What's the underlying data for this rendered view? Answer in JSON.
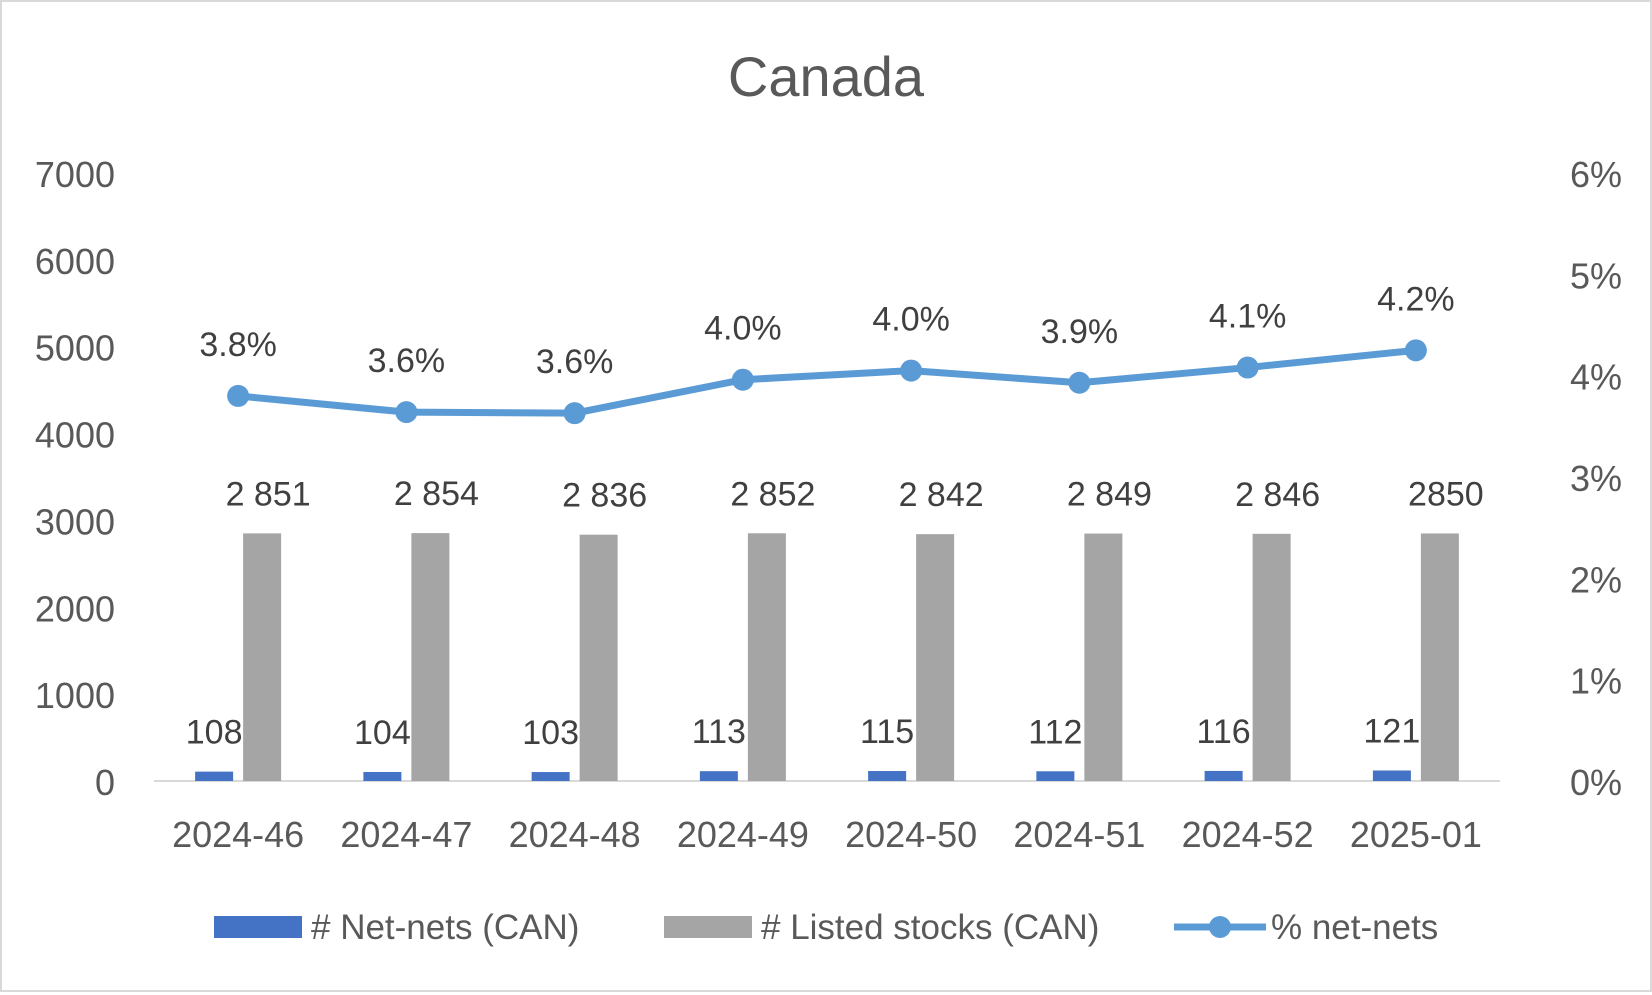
{
  "chart_data": {
    "type": "bar",
    "title": "Canada",
    "categories": [
      "2024-46",
      "2024-47",
      "2024-48",
      "2024-49",
      "2024-50",
      "2024-51",
      "2024-52",
      "2025-01"
    ],
    "ylim": [
      0,
      7000
    ],
    "yticks": [
      "0",
      "1000",
      "2000",
      "3000",
      "4000",
      "5000",
      "6000",
      "7000"
    ],
    "y2lim": [
      0,
      6
    ],
    "y2ticks": [
      "0%",
      "1%",
      "2%",
      "3%",
      "4%",
      "5%",
      "6%"
    ],
    "grid": false,
    "legend_position": "bottom",
    "series": [
      {
        "name": "# Net-nets (CAN)",
        "type": "bar",
        "axis": "left",
        "color": "#4472c4",
        "values": [
          108,
          104,
          103,
          113,
          115,
          112,
          116,
          121
        ],
        "labels": [
          "108",
          "104",
          "103",
          "113",
          "115",
          "112",
          "116",
          "121"
        ]
      },
      {
        "name": "# Listed stocks (CAN)",
        "type": "bar",
        "axis": "left",
        "color": "#a5a5a5",
        "values": [
          2851,
          2854,
          2836,
          2852,
          2842,
          2849,
          2846,
          2850
        ],
        "labels": [
          "2 851",
          "2 854",
          "2 836",
          "2 852",
          "2 842",
          "2 849",
          "2 846",
          "2850"
        ]
      },
      {
        "name": "% net-nets",
        "type": "line",
        "axis": "right",
        "color": "#5b9bd5",
        "values": [
          3.8,
          3.64,
          3.63,
          3.96,
          4.05,
          3.93,
          4.08,
          4.25
        ],
        "labels": [
          "3.8%",
          "3.6%",
          "3.6%",
          "4.0%",
          "4.0%",
          "3.9%",
          "4.1%",
          "4.2%"
        ]
      }
    ]
  }
}
